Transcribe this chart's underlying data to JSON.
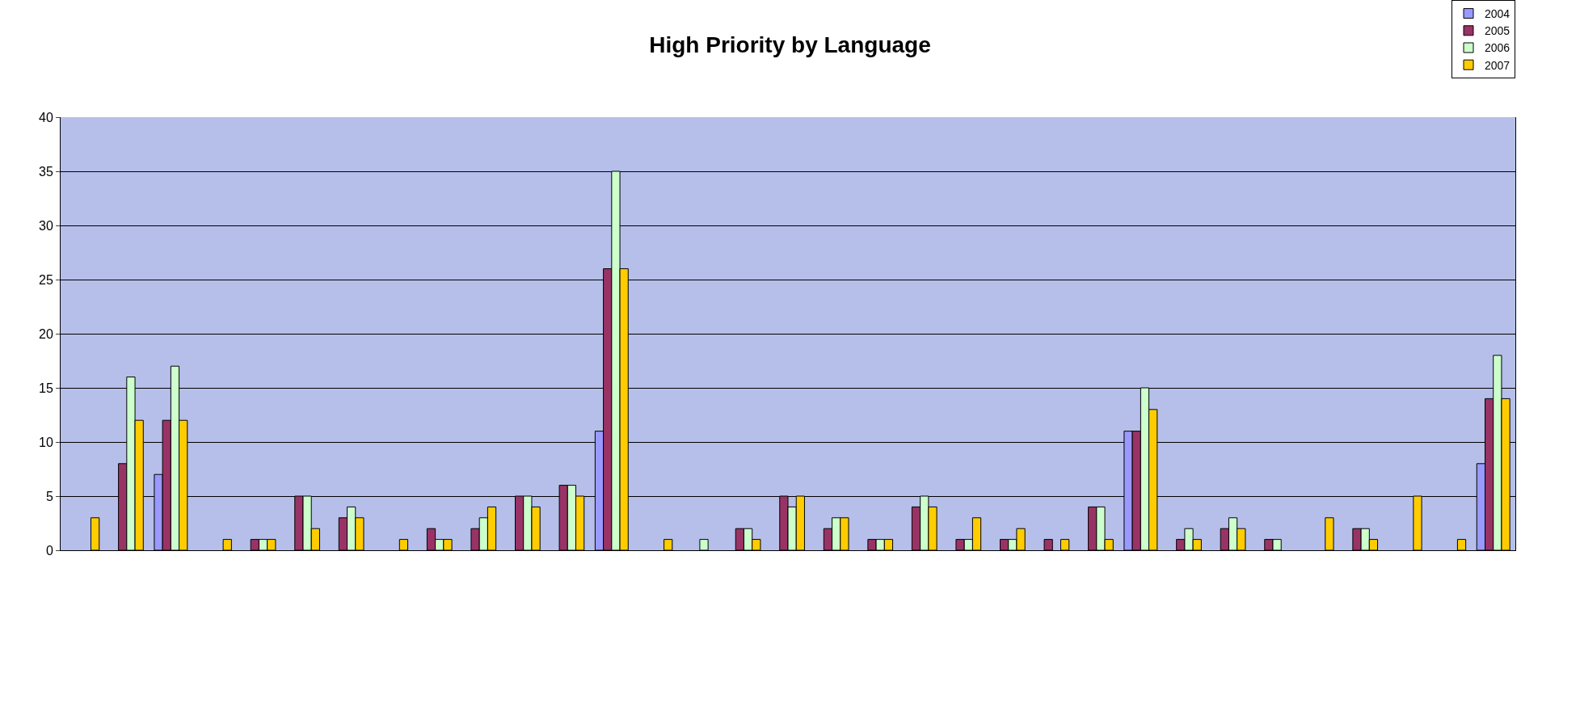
{
  "chart_data": {
    "type": "bar",
    "title": "High Priority by Language",
    "categories": [
      null,
      null,
      null,
      null,
      null,
      null,
      null,
      null,
      null,
      null,
      null,
      null,
      null,
      null,
      null,
      null,
      null,
      null,
      null,
      null,
      null,
      null,
      null,
      null,
      null,
      null,
      null,
      null,
      null,
      null,
      null,
      null,
      null
    ],
    "series": [
      {
        "name": "2004",
        "color": "#9999ff",
        "values": [
          null,
          null,
          7,
          null,
          null,
          null,
          null,
          null,
          null,
          null,
          null,
          null,
          11,
          null,
          null,
          null,
          null,
          null,
          null,
          null,
          null,
          null,
          null,
          null,
          11,
          null,
          null,
          null,
          null,
          null,
          null,
          null,
          8
        ]
      },
      {
        "name": "2005",
        "color": "#993366",
        "values": [
          null,
          8,
          12,
          null,
          1,
          5,
          3,
          null,
          2,
          2,
          5,
          6,
          26,
          null,
          null,
          2,
          5,
          2,
          1,
          4,
          1,
          1,
          1,
          4,
          11,
          1,
          2,
          1,
          null,
          2,
          null,
          null,
          14
        ]
      },
      {
        "name": "2006",
        "color": "#ccffcc",
        "values": [
          null,
          16,
          17,
          null,
          1,
          5,
          4,
          null,
          1,
          3,
          5,
          6,
          35,
          null,
          1,
          2,
          4,
          3,
          1,
          5,
          1,
          1,
          null,
          4,
          15,
          2,
          3,
          1,
          null,
          2,
          null,
          null,
          18
        ]
      },
      {
        "name": "2007",
        "color": "#ffcc00",
        "values": [
          3,
          12,
          12,
          1,
          1,
          2,
          3,
          1,
          1,
          4,
          4,
          5,
          26,
          1,
          null,
          1,
          5,
          3,
          1,
          4,
          3,
          2,
          1,
          1,
          13,
          1,
          2,
          null,
          3,
          1,
          5,
          1,
          14
        ]
      }
    ],
    "ylim": [
      0,
      40
    ],
    "yticks": [
      0,
      5,
      10,
      15,
      20,
      25,
      30,
      35,
      40
    ],
    "grid": "y",
    "legend": "top right"
  }
}
